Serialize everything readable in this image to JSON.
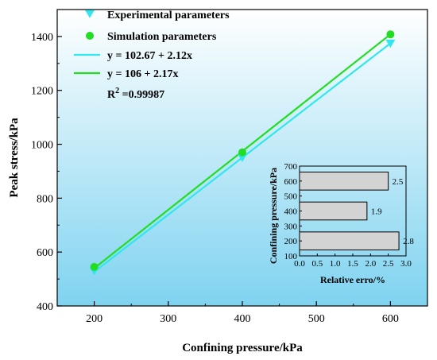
{
  "chart_data": [
    {
      "type": "line",
      "xlabel": "Confining pressure/kPa",
      "ylabel": "Peak stress/kPa",
      "xlim": [
        150,
        650
      ],
      "ylim": [
        400,
        1500
      ],
      "xticks": [
        200,
        300,
        400,
        500,
        600
      ],
      "yticks": [
        400,
        600,
        800,
        1000,
        1200,
        1400
      ],
      "grid": false,
      "legend_position": "top-left",
      "background": {
        "top": "#ffffff",
        "bottom": "#7fd3f0"
      },
      "series": [
        {
          "name": "Experimental parameters",
          "kind": "scatter",
          "marker": "triangle-down",
          "color": "#33e6ee",
          "x": [
            200,
            400,
            600
          ],
          "y": [
            530,
            951,
            1375
          ]
        },
        {
          "name": "Simulation parameters",
          "kind": "scatter",
          "marker": "circle",
          "color": "#22dd22",
          "x": [
            200,
            400,
            600
          ],
          "y": [
            545,
            970,
            1408
          ]
        },
        {
          "name": "y = 102.67 + 2.12x",
          "kind": "line",
          "color": "#33e6ee",
          "intercept": 102.67,
          "slope": 2.12
        },
        {
          "name": "y = 106 + 2.17x",
          "kind": "line",
          "color": "#22dd22",
          "intercept": 106,
          "slope": 2.17
        }
      ],
      "annotation": {
        "base": "R",
        "sup": "2",
        "rest": " =0.99987"
      }
    },
    {
      "type": "bar",
      "orientation": "horizontal",
      "xlabel": "Relative erro/%",
      "ylabel": "Confining pressure/kPa",
      "xlim": [
        0,
        3.0
      ],
      "ylim": [
        100,
        700
      ],
      "xticks": [
        0.0,
        0.5,
        1.0,
        1.5,
        2.0,
        2.5,
        3.0
      ],
      "yticks": [
        100,
        200,
        300,
        400,
        500,
        600,
        700
      ],
      "bar_color": "#d3d3d3",
      "categories": [
        200,
        400,
        600
      ],
      "values": [
        2.8,
        1.9,
        2.5
      ],
      "value_labels": [
        "2.8",
        "1.9",
        "2.5"
      ]
    }
  ]
}
